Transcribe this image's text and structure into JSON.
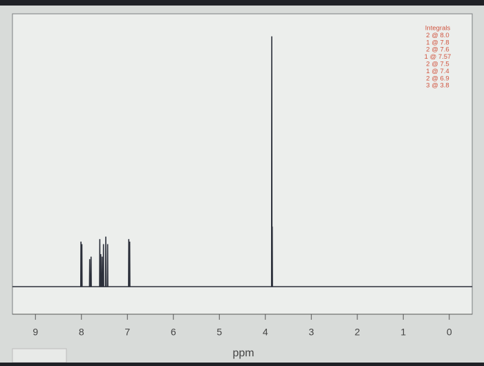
{
  "chart_data": {
    "type": "line",
    "xlabel": "ppm",
    "x": [
      9.5,
      8.015,
      8.01,
      8.005,
      7.995,
      7.99,
      7.985,
      7.825,
      7.82,
      7.815,
      7.795,
      7.79,
      7.785,
      7.605,
      7.6,
      7.595,
      7.585,
      7.58,
      7.575,
      7.555,
      7.55,
      7.545,
      7.525,
      7.52,
      7.515,
      7.475,
      7.47,
      7.465,
      7.435,
      7.43,
      7.425,
      6.975,
      6.97,
      6.965,
      6.955,
      6.95,
      6.945,
      3.865,
      3.86,
      3.855,
      3.853,
      3.85,
      3.845,
      -0.5
    ],
    "values": [
      0,
      0,
      18,
      0,
      0,
      17,
      0,
      0,
      11,
      0,
      0,
      12,
      0,
      0,
      19,
      0,
      0,
      13,
      0,
      0,
      12,
      0,
      0,
      17,
      0,
      0,
      20,
      0,
      0,
      17,
      0,
      0,
      19,
      0,
      0,
      18,
      0,
      0,
      100,
      0,
      0,
      24,
      0,
      0
    ],
    "color": "#2b2f3a",
    "xlim": [
      9.5,
      -0.5
    ],
    "xticks": [
      9,
      8,
      7,
      6,
      5,
      4,
      3,
      2,
      1,
      0
    ],
    "ylim": [
      -11,
      109
    ],
    "annotations": [
      "Integrals",
      "2 @ 8.0",
      "1 @ 7.8",
      "2 @ 7.6",
      "1 @ 7.57",
      "2 @ 7.5",
      "1 @ 7.4",
      "2 @ 6.9",
      "3 @ 3.8"
    ],
    "annotation_color": "#d0543f"
  }
}
